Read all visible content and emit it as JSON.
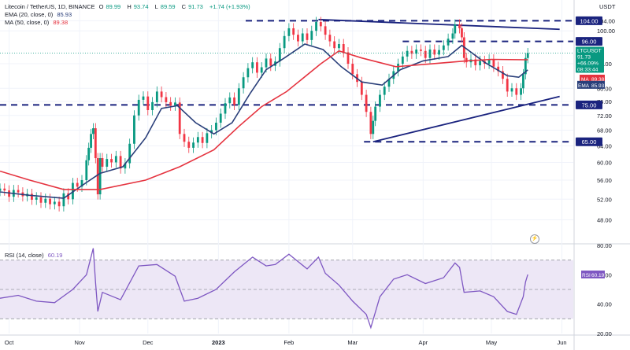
{
  "header": {
    "symbol_title": "Litecoin / TetherUS, 1D, BINANCE",
    "o_label": "O",
    "o_value": "89.99",
    "h_label": "H",
    "h_value": "93.74",
    "l_label": "L",
    "l_value": "89.59",
    "c_label": "C",
    "c_value": "91.73",
    "change": "+1.74 (+1.93%)",
    "ema_legend": "EMA (20, close, 0)",
    "ema_value": "85.93",
    "ma_legend": "MA (50, close, 0)",
    "ma_value": "89.38",
    "currency": "USDT"
  },
  "colors": {
    "up": "#089981",
    "down": "#f23645",
    "ema": "#2a3f7a",
    "ma": "#e5333f",
    "level": "#1a237e",
    "rsi": "#7e57c2",
    "rsi_band": "#ede7f6",
    "grid": "#f0f3fa",
    "axis_text": "#131722"
  },
  "chart_data": [
    {
      "type": "candlestick",
      "title": "Litecoin / TetherUS, 1D, BINANCE",
      "y_scale": "log",
      "ylim": [
        44,
        110
      ],
      "y_ticks": [
        48,
        52,
        56,
        60,
        64,
        68,
        72,
        76,
        80,
        88,
        100,
        104
      ],
      "x_ticks": [
        "Oct",
        "Nov",
        "Dec",
        "2023",
        "Feb",
        "Mar",
        "Apr",
        "May",
        "Jun"
      ],
      "x_range": [
        "2022-09-27",
        "2023-06-06"
      ],
      "series": [
        {
          "name": "EMA",
          "points": [
            [
              "2022-09-27",
              53.5
            ],
            [
              "2022-10-10",
              52.8
            ],
            [
              "2022-10-25",
              52.2
            ],
            [
              "2022-11-04",
              55.5
            ],
            [
              "2022-11-10",
              57.5
            ],
            [
              "2022-11-20",
              59.0
            ],
            [
              "2022-11-30",
              66.0
            ],
            [
              "2022-12-07",
              74.0
            ],
            [
              "2022-12-14",
              74.8
            ],
            [
              "2022-12-22",
              70.0
            ],
            [
              "2022-12-30",
              67.0
            ],
            [
              "2023-01-07",
              70.0
            ],
            [
              "2023-01-15",
              78.5
            ],
            [
              "2023-01-22",
              86.0
            ],
            [
              "2023-01-30",
              90.0
            ],
            [
              "2023-02-08",
              95.0
            ],
            [
              "2023-02-16",
              93.0
            ],
            [
              "2023-02-24",
              87.0
            ],
            [
              "2023-03-05",
              82.0
            ],
            [
              "2023-03-14",
              81.0
            ],
            [
              "2023-03-22",
              86.0
            ],
            [
              "2023-04-01",
              89.0
            ],
            [
              "2023-04-12",
              90.5
            ],
            [
              "2023-04-18",
              94.5
            ],
            [
              "2023-04-28",
              88.5
            ],
            [
              "2023-05-08",
              84.0
            ],
            [
              "2023-05-13",
              83.5
            ],
            [
              "2023-05-17",
              85.93
            ]
          ]
        },
        {
          "name": "MA",
          "points": [
            [
              "2022-09-27",
              58.0
            ],
            [
              "2022-10-10",
              56.0
            ],
            [
              "2022-10-25",
              54.0
            ],
            [
              "2022-11-10",
              54.0
            ],
            [
              "2022-11-30",
              56.0
            ],
            [
              "2022-12-15",
              59.0
            ],
            [
              "2022-12-30",
              63.0
            ],
            [
              "2023-01-10",
              69.0
            ],
            [
              "2023-01-20",
              74.5
            ],
            [
              "2023-01-31",
              79.0
            ],
            [
              "2023-02-15",
              88.0
            ],
            [
              "2023-02-23",
              92.5
            ],
            [
              "2023-03-05",
              90.0
            ],
            [
              "2023-03-20",
              87.0
            ],
            [
              "2023-04-05",
              88.0
            ],
            [
              "2023-04-20",
              89.0
            ],
            [
              "2023-05-01",
              89.5
            ],
            [
              "2023-05-17",
              89.38
            ]
          ]
        }
      ],
      "candles": [
        [
          "2022-09-27",
          53.7,
          54.2
        ],
        [
          "2022-09-29",
          54.2,
          53.8
        ],
        [
          "2022-10-01",
          53.8,
          52.5
        ],
        [
          "2022-10-03",
          52.5,
          53.9
        ],
        [
          "2022-10-05",
          53.9,
          53.4
        ],
        [
          "2022-10-07",
          53.4,
          52.6
        ],
        [
          "2022-10-09",
          52.6,
          53.1
        ],
        [
          "2022-10-11",
          53.1,
          51.9
        ],
        [
          "2022-10-13",
          51.9,
          52.4
        ],
        [
          "2022-10-15",
          52.4,
          51.3
        ],
        [
          "2022-10-17",
          51.3,
          52.1
        ],
        [
          "2022-10-19",
          52.1,
          51.0
        ],
        [
          "2022-10-21",
          51.0,
          51.5
        ],
        [
          "2022-10-23",
          51.5,
          50.6
        ],
        [
          "2022-10-25",
          50.6,
          53.2
        ],
        [
          "2022-10-27",
          53.2,
          52.0
        ],
        [
          "2022-10-29",
          52.0,
          55.4
        ],
        [
          "2022-10-31",
          55.4,
          54.6
        ],
        [
          "2022-11-02",
          54.6,
          56.0
        ],
        [
          "2022-11-04",
          56.0,
          60.5
        ],
        [
          "2022-11-05",
          60.5,
          63.5
        ],
        [
          "2022-11-06",
          63.5,
          67.0
        ],
        [
          "2022-11-07",
          67.0,
          68.5
        ],
        [
          "2022-11-08",
          68.5,
          61.0
        ],
        [
          "2022-11-09",
          61.0,
          53.0
        ],
        [
          "2022-11-10",
          53.0,
          61.0
        ],
        [
          "2022-11-11",
          61.0,
          59.0
        ],
        [
          "2022-11-13",
          59.0,
          60.8
        ],
        [
          "2022-11-15",
          60.8,
          60.0
        ],
        [
          "2022-11-17",
          60.0,
          61.5
        ],
        [
          "2022-11-19",
          61.5,
          58.6
        ],
        [
          "2022-11-21",
          58.6,
          59.8
        ],
        [
          "2022-11-23",
          59.8,
          64.5
        ],
        [
          "2022-11-25",
          64.5,
          72.0
        ],
        [
          "2022-11-27",
          72.0,
          76.5
        ],
        [
          "2022-11-29",
          76.5,
          77.5
        ],
        [
          "2022-12-01",
          77.5,
          73.5
        ],
        [
          "2022-12-03",
          73.5,
          75.8
        ],
        [
          "2022-12-05",
          75.8,
          79.0
        ],
        [
          "2022-12-07",
          79.0,
          77.3
        ],
        [
          "2022-12-09",
          77.3,
          75.8
        ],
        [
          "2022-12-11",
          75.8,
          74.8
        ],
        [
          "2022-12-13",
          74.8,
          75.7
        ],
        [
          "2022-12-15",
          75.7,
          67.0
        ],
        [
          "2022-12-17",
          67.0,
          65.0
        ],
        [
          "2022-12-19",
          65.0,
          63.5
        ],
        [
          "2022-12-21",
          63.5,
          64.8
        ],
        [
          "2022-12-23",
          64.8,
          66.2
        ],
        [
          "2022-12-25",
          66.2,
          64.7
        ],
        [
          "2022-12-27",
          64.7,
          67.2
        ],
        [
          "2022-12-29",
          67.2,
          68.0
        ],
        [
          "2022-12-31",
          68.0,
          70.0
        ],
        [
          "2023-01-02",
          70.0,
          72.5
        ],
        [
          "2023-01-04",
          72.5,
          75.5
        ],
        [
          "2023-01-06",
          75.5,
          77.2
        ],
        [
          "2023-01-08",
          77.2,
          75.0
        ],
        [
          "2023-01-10",
          75.0,
          80.0
        ],
        [
          "2023-01-12",
          80.0,
          83.5
        ],
        [
          "2023-01-14",
          83.5,
          86.5
        ],
        [
          "2023-01-16",
          86.5,
          88.5
        ],
        [
          "2023-01-18",
          88.5,
          85.0
        ],
        [
          "2023-01-20",
          85.0,
          86.8
        ],
        [
          "2023-01-22",
          86.8,
          89.8
        ],
        [
          "2023-01-24",
          89.8,
          87.3
        ],
        [
          "2023-01-26",
          87.3,
          88.8
        ],
        [
          "2023-01-28",
          88.8,
          93.5
        ],
        [
          "2023-01-30",
          93.5,
          98.0
        ],
        [
          "2023-02-01",
          98.0,
          101.0
        ],
        [
          "2023-02-03",
          101.0,
          98.5
        ],
        [
          "2023-02-05",
          98.5,
          96.0
        ],
        [
          "2023-02-07",
          96.0,
          99.0
        ],
        [
          "2023-02-09",
          99.0,
          96.5
        ],
        [
          "2023-02-11",
          96.5,
          100.0
        ],
        [
          "2023-02-13",
          100.0,
          103.5
        ],
        [
          "2023-02-15",
          103.5,
          101.8
        ],
        [
          "2023-02-17",
          101.8,
          98.5
        ],
        [
          "2023-02-19",
          98.5,
          96.0
        ],
        [
          "2023-02-21",
          96.0,
          93.5
        ],
        [
          "2023-02-23",
          93.5,
          95.0
        ],
        [
          "2023-02-25",
          95.0,
          92.0
        ],
        [
          "2023-02-27",
          92.0,
          88.0
        ],
        [
          "2023-03-01",
          88.0,
          84.5
        ],
        [
          "2023-03-03",
          84.5,
          82.0
        ],
        [
          "2023-03-05",
          82.0,
          78.0
        ],
        [
          "2023-03-07",
          78.0,
          73.0
        ],
        [
          "2023-03-09",
          73.0,
          67.0
        ],
        [
          "2023-03-10",
          67.0,
          70.5
        ],
        [
          "2023-03-11",
          70.5,
          74.5
        ],
        [
          "2023-03-13",
          74.5,
          78.0
        ],
        [
          "2023-03-15",
          78.0,
          80.5
        ],
        [
          "2023-03-17",
          80.5,
          83.0
        ],
        [
          "2023-03-19",
          83.0,
          85.5
        ],
        [
          "2023-03-21",
          85.5,
          88.0
        ],
        [
          "2023-03-23",
          88.0,
          90.5
        ],
        [
          "2023-03-25",
          90.5,
          92.5
        ],
        [
          "2023-03-27",
          92.5,
          91.5
        ],
        [
          "2023-03-29",
          91.5,
          93.0
        ],
        [
          "2023-03-31",
          93.0,
          92.5
        ],
        [
          "2023-04-02",
          92.5,
          90.0
        ],
        [
          "2023-04-04",
          90.0,
          93.0
        ],
        [
          "2023-04-06",
          93.0,
          91.2
        ],
        [
          "2023-04-08",
          91.2,
          92.8
        ],
        [
          "2023-04-10",
          92.8,
          94.5
        ],
        [
          "2023-04-12",
          94.5,
          97.0
        ],
        [
          "2023-04-14",
          97.0,
          99.0
        ],
        [
          "2023-04-15",
          99.0,
          102.5
        ],
        [
          "2023-04-17",
          102.5,
          101.0
        ],
        [
          "2023-04-18",
          101.0,
          97.5
        ],
        [
          "2023-04-19",
          97.5,
          90.0
        ],
        [
          "2023-04-20",
          90.0,
          88.5
        ],
        [
          "2023-04-22",
          88.5,
          89.5
        ],
        [
          "2023-04-24",
          89.5,
          87.5
        ],
        [
          "2023-04-26",
          87.5,
          89.0
        ],
        [
          "2023-04-28",
          89.0,
          88.0
        ],
        [
          "2023-04-30",
          88.0,
          89.5
        ],
        [
          "2023-05-02",
          89.5,
          87.0
        ],
        [
          "2023-05-04",
          87.0,
          85.5
        ],
        [
          "2023-05-06",
          85.5,
          83.0
        ],
        [
          "2023-05-08",
          83.0,
          79.0
        ],
        [
          "2023-05-10",
          79.0,
          80.0
        ],
        [
          "2023-05-12",
          80.0,
          78.0
        ],
        [
          "2023-05-14",
          78.0,
          80.0
        ],
        [
          "2023-05-15",
          80.0,
          84.5
        ],
        [
          "2023-05-16",
          84.5,
          89.99
        ],
        [
          "2023-05-17",
          89.99,
          91.73
        ]
      ],
      "horizontal_levels": [
        {
          "label": "104.00",
          "value": 104.0
        },
        {
          "label": "96.00",
          "value": 96.0
        },
        {
          "label": "75.00",
          "value": 75.0
        },
        {
          "label": "65.00",
          "value": 65.0
        }
      ],
      "trendlines": [
        {
          "name": "resistance",
          "points": [
            [
              "2023-02-14",
              104.5
            ],
            [
              "2023-05-31",
              100.6
            ]
          ]
        },
        {
          "name": "support",
          "points": [
            [
              "2023-03-10",
              65.0
            ],
            [
              "2023-05-31",
              77.5
            ]
          ]
        }
      ],
      "price_labels": [
        {
          "name": "LTCUSDT",
          "lines": [
            "LTCUSDT",
            "91.73",
            "+66.09%",
            "08:33:44"
          ],
          "value": 91.73
        },
        {
          "name": "MA",
          "value_text": "89.38",
          "value": 89.38
        },
        {
          "name": "EMA",
          "value_text": "85.93",
          "value": 85.93
        }
      ]
    },
    {
      "type": "line",
      "title": "RSI (14, close)",
      "current_value": "60.19",
      "ylim": [
        20,
        80
      ],
      "y_ticks": [
        20,
        40,
        60,
        80
      ],
      "band": [
        30,
        70
      ],
      "midline": 50,
      "series": [
        {
          "name": "RSI",
          "points": [
            [
              "2022-09-27",
              44.0
            ],
            [
              "2022-10-05",
              46.0
            ],
            [
              "2022-10-13",
              42.0
            ],
            [
              "2022-10-21",
              41.0
            ],
            [
              "2022-10-29",
              50.0
            ],
            [
              "2022-11-04",
              60.0
            ],
            [
              "2022-11-07",
              78.0
            ],
            [
              "2022-11-08",
              55.0
            ],
            [
              "2022-11-09",
              35.0
            ],
            [
              "2022-11-11",
              48.0
            ],
            [
              "2022-11-19",
              43.0
            ],
            [
              "2022-11-27",
              66.0
            ],
            [
              "2022-12-05",
              67.0
            ],
            [
              "2022-12-13",
              59.0
            ],
            [
              "2022-12-17",
              42.0
            ],
            [
              "2022-12-23",
              44.0
            ],
            [
              "2022-12-31",
              50.0
            ],
            [
              "2023-01-08",
              62.0
            ],
            [
              "2023-01-16",
              72.0
            ],
            [
              "2023-01-22",
              66.0
            ],
            [
              "2023-01-26",
              67.0
            ],
            [
              "2023-02-01",
              74.0
            ],
            [
              "2023-02-09",
              64.0
            ],
            [
              "2023-02-14",
              72.0
            ],
            [
              "2023-02-17",
              61.0
            ],
            [
              "2023-02-23",
              53.0
            ],
            [
              "2023-03-01",
              42.0
            ],
            [
              "2023-03-07",
              33.0
            ],
            [
              "2023-03-09",
              24.0
            ],
            [
              "2023-03-13",
              45.0
            ],
            [
              "2023-03-19",
              57.0
            ],
            [
              "2023-03-25",
              60.0
            ],
            [
              "2023-04-02",
              54.0
            ],
            [
              "2023-04-10",
              58.0
            ],
            [
              "2023-04-15",
              68.0
            ],
            [
              "2023-04-17",
              65.0
            ],
            [
              "2023-04-19",
              48.0
            ],
            [
              "2023-04-26",
              49.0
            ],
            [
              "2023-05-02",
              45.0
            ],
            [
              "2023-05-08",
              35.0
            ],
            [
              "2023-05-12",
              33.0
            ],
            [
              "2023-05-15",
              45.0
            ],
            [
              "2023-05-16",
              55.0
            ],
            [
              "2023-05-17",
              60.19
            ]
          ]
        }
      ]
    }
  ]
}
